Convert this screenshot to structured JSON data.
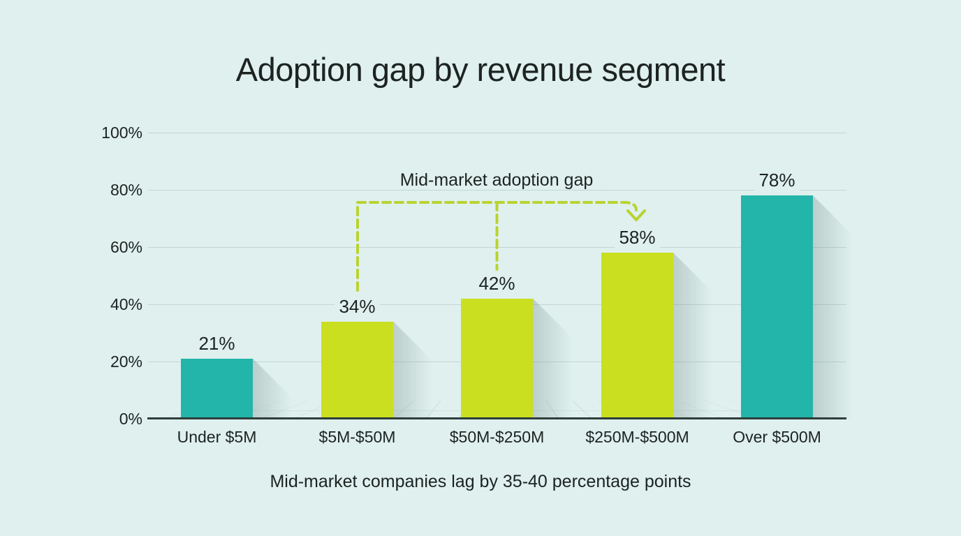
{
  "chart_data": {
    "type": "bar",
    "title": "Adoption gap by revenue segment",
    "categories": [
      "Under $5M",
      "$5M-$50M",
      "$50M-$250M",
      "$250M-$500M",
      "Over $500M"
    ],
    "values": [
      21,
      34,
      42,
      58,
      78
    ],
    "value_labels": [
      "21%",
      "34%",
      "42%",
      "58%",
      "78%"
    ],
    "bar_colors": [
      "teal",
      "lime",
      "lime",
      "lime",
      "teal"
    ],
    "yticks": [
      {
        "label": "100%",
        "value": 100
      },
      {
        "label": "80%",
        "value": 80
      },
      {
        "label": "60%",
        "value": 60
      },
      {
        "label": "40%",
        "value": 40
      },
      {
        "label": "20%",
        "value": 20
      },
      {
        "label": "0%",
        "value": 0
      }
    ],
    "ylim": [
      0,
      100
    ],
    "grid": true,
    "legend": "none",
    "annotation": {
      "label": "Mid-market adoption gap",
      "targets": [
        "$5M-$50M",
        "$50M-$250M",
        "$250M-$500M"
      ]
    },
    "footnote": "Mid-market companies lag by 35-40 percentage points"
  },
  "colors": {
    "background": "#dff0ee",
    "teal": "#23b4aa",
    "lime": "#c9df20",
    "annotation_dash": "#b9d331",
    "gridline": "#c3d6d3",
    "axis": "#2d3e3b",
    "text": "#1c2321"
  }
}
